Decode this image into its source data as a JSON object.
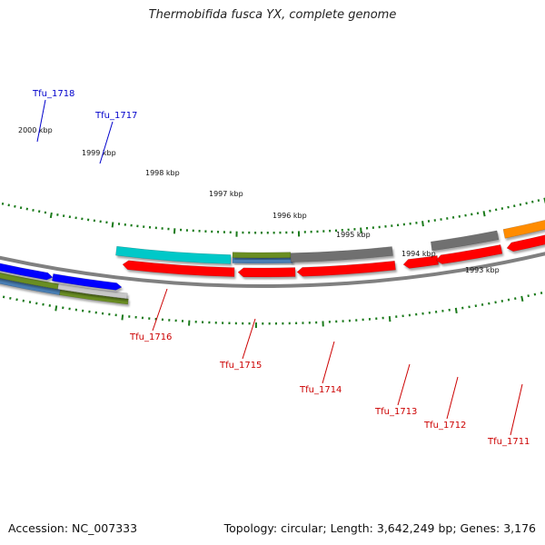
{
  "title": "Thermobifida fusca YX, complete genome",
  "footer": {
    "accession": "Accession: NC_007333",
    "summary": "Topology: circular; Length: 3,642,249 bp; Genes: 3,176"
  },
  "ticks": [
    {
      "label": "2000 kbp"
    },
    {
      "label": "1999 kbp"
    },
    {
      "label": "1998 kbp"
    },
    {
      "label": "1997 kbp"
    },
    {
      "label": "1996 kbp"
    },
    {
      "label": "1995 kbp"
    },
    {
      "label": "1994 kbp"
    },
    {
      "label": "1993 kbp"
    }
  ],
  "gene_labels": [
    {
      "name": "Tfu_1718",
      "strand": "forward",
      "color": "#0000cc"
    },
    {
      "name": "Tfu_1717",
      "strand": "forward",
      "color": "#0000cc"
    },
    {
      "name": "Tfu_1716",
      "strand": "reverse",
      "color": "#cc0000"
    },
    {
      "name": "Tfu_1715",
      "strand": "reverse",
      "color": "#cc0000"
    },
    {
      "name": "Tfu_1714",
      "strand": "reverse",
      "color": "#cc0000"
    },
    {
      "name": "Tfu_1713",
      "strand": "reverse",
      "color": "#cc0000"
    },
    {
      "name": "Tfu_1712",
      "strand": "reverse",
      "color": "#cc0000"
    },
    {
      "name": "Tfu_1711",
      "strand": "reverse",
      "color": "#cc0000"
    }
  ],
  "colors": {
    "forward_cds": "#0000ff",
    "reverse_cds": "#ff0000",
    "backbone": "#808080",
    "tick": "#1a7a1a",
    "cog_steelblue": "#4a7fb5",
    "cog_olive": "#6b8e23",
    "cog_gray": "#707070",
    "cog_lightgray": "#c8c8c8",
    "cog_cyan": "#00c8c8",
    "cog_orange": "#ff8c00"
  }
}
